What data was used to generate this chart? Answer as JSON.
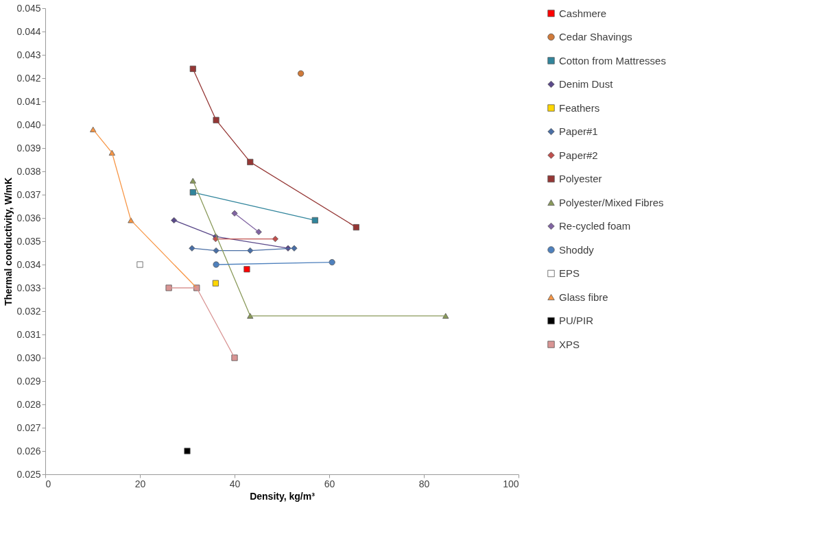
{
  "chart_data": {
    "type": "scatter",
    "xlabel": "Density, kg/m³",
    "ylabel": "Thermal conductivity, W/mK",
    "xlim": [
      0,
      100
    ],
    "xticks": [
      0,
      20,
      40,
      60,
      80,
      100
    ],
    "ylim": [
      0.025,
      0.045
    ],
    "yticks": [
      0.025,
      0.026,
      0.027,
      0.028,
      0.029,
      {
        "value": 0.03,
        "label": "0.030"
      },
      0.031,
      0.032,
      0.033,
      0.034,
      0.035,
      0.036,
      0.037,
      0.038,
      0.039,
      {
        "value": 0.04,
        "label": "0.040"
      },
      0.041,
      0.042,
      0.043,
      0.044,
      0.045
    ],
    "grid": false,
    "legend": "right",
    "series": [
      {
        "name": "Cashmere",
        "type": "scatter",
        "marker": "square",
        "color": "#ff0000",
        "x": [
          42.6
        ],
        "values": [
          0.0338
        ]
      },
      {
        "name": "Cedar Shavings",
        "type": "scatter",
        "marker": "circle",
        "color": "#d07a3a",
        "x": [
          54
        ],
        "values": [
          0.0422
        ]
      },
      {
        "name": "Cotton from Mattresses",
        "type": "line",
        "marker": "square",
        "color": "#31859c",
        "x": [
          31.2,
          57.0
        ],
        "values": [
          0.0371,
          0.0359
        ]
      },
      {
        "name": "Denim Dust",
        "type": "line",
        "marker": "diamond",
        "color": "#5b4a8a",
        "x": [
          27.2,
          36.0,
          51.3
        ],
        "values": [
          0.0359,
          0.0352,
          0.0347
        ]
      },
      {
        "name": "Feathers",
        "type": "scatter",
        "marker": "square",
        "color": "#ffd700",
        "x": [
          36.0
        ],
        "values": [
          0.0332
        ]
      },
      {
        "name": "Paper#1",
        "type": "line",
        "marker": "diamond",
        "color": "#4a6fa5",
        "x": [
          31.0,
          36.1,
          43.3,
          52.6
        ],
        "values": [
          0.0347,
          0.0346,
          0.0346,
          0.0347
        ]
      },
      {
        "name": "Paper#2",
        "type": "line",
        "marker": "diamond",
        "color": "#c0504d",
        "x": [
          36.0,
          48.6
        ],
        "values": [
          0.0351,
          0.0351
        ]
      },
      {
        "name": "Polyester",
        "type": "line",
        "marker": "square",
        "color": "#953735",
        "x": [
          31.2,
          36.1,
          43.3,
          65.7
        ],
        "values": [
          0.0424,
          0.0402,
          0.0384,
          0.0356
        ]
      },
      {
        "name": "Polyester/Mixed Fibres",
        "type": "line",
        "marker": "triangle",
        "color": "#8a9a5b",
        "x": [
          31.2,
          43.3,
          84.6
        ],
        "values": [
          0.0376,
          0.0318,
          0.0318
        ]
      },
      {
        "name": "Re-cycled foam",
        "type": "line",
        "marker": "diamond",
        "color": "#8064a2",
        "x": [
          40.0,
          45.1
        ],
        "values": [
          0.0362,
          0.0354
        ]
      },
      {
        "name": "Shoddy",
        "type": "line",
        "marker": "circle",
        "color": "#4f81bd",
        "x": [
          36.1,
          60.6
        ],
        "values": [
          0.034,
          0.0341
        ]
      },
      {
        "name": "EPS",
        "type": "scatter",
        "marker": "square",
        "color": "#ffffff",
        "x": [
          20
        ],
        "values": [
          0.034
        ]
      },
      {
        "name": "Glass fibre",
        "type": "line",
        "marker": "triangle",
        "color": "#f79646",
        "x": [
          10.1,
          14.1,
          18.1,
          32.0
        ],
        "values": [
          0.0398,
          0.0388,
          0.0359,
          0.033
        ]
      },
      {
        "name": "PU/PIR",
        "type": "scatter",
        "marker": "square",
        "color": "#000000",
        "x": [
          30
        ],
        "values": [
          0.026
        ]
      },
      {
        "name": "XPS",
        "type": "line",
        "marker": "square",
        "color": "#d99594",
        "x": [
          26.1,
          32.0,
          40.0
        ],
        "values": [
          0.033,
          0.033,
          0.03
        ]
      }
    ]
  }
}
